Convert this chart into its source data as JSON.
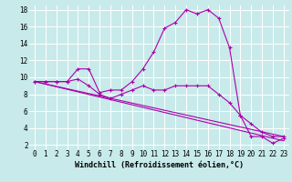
{
  "background_color": "#c8eaea",
  "grid_color": "#ffffff",
  "line_color": "#aa00aa",
  "series": [
    {
      "x": [
        0,
        1,
        2,
        3,
        4,
        5,
        6,
        7,
        8,
        9,
        10,
        11,
        12,
        13,
        14,
        15,
        16,
        17,
        18,
        19,
        20,
        21,
        22,
        23
      ],
      "y": [
        9.5,
        9.5,
        9.5,
        9.5,
        11.0,
        11.0,
        8.2,
        8.5,
        8.5,
        9.5,
        11.0,
        13.0,
        15.8,
        16.5,
        18.0,
        17.5,
        18.0,
        17.0,
        13.5,
        5.5,
        3.0,
        3.0,
        2.2,
        2.8
      ]
    },
    {
      "x": [
        0,
        1,
        2,
        3,
        4,
        5,
        6,
        7,
        8,
        9,
        10,
        11,
        12,
        13,
        14,
        15,
        16,
        17,
        18,
        19,
        20,
        21,
        22,
        23
      ],
      "y": [
        9.5,
        9.5,
        9.5,
        9.5,
        9.8,
        9.0,
        8.0,
        7.5,
        8.0,
        8.5,
        9.0,
        8.5,
        8.5,
        9.0,
        9.0,
        9.0,
        9.0,
        8.0,
        7.0,
        5.5,
        4.5,
        3.5,
        3.0,
        3.0
      ]
    },
    {
      "x": [
        0,
        23
      ],
      "y": [
        9.5,
        2.5
      ]
    },
    {
      "x": [
        0,
        23
      ],
      "y": [
        9.5,
        3.0
      ]
    }
  ],
  "xlabel": "Windchill (Refroidissement éolien,°C)",
  "xlim": [
    0,
    23
  ],
  "ylim": [
    2,
    18
  ],
  "xticks": [
    0,
    1,
    2,
    3,
    4,
    5,
    6,
    7,
    8,
    9,
    10,
    11,
    12,
    13,
    14,
    15,
    16,
    17,
    18,
    19,
    20,
    21,
    22,
    23
  ],
  "yticks": [
    2,
    4,
    6,
    8,
    10,
    12,
    14,
    16,
    18
  ],
  "tick_fontsize": 5.5,
  "xlabel_fontsize": 6.0
}
